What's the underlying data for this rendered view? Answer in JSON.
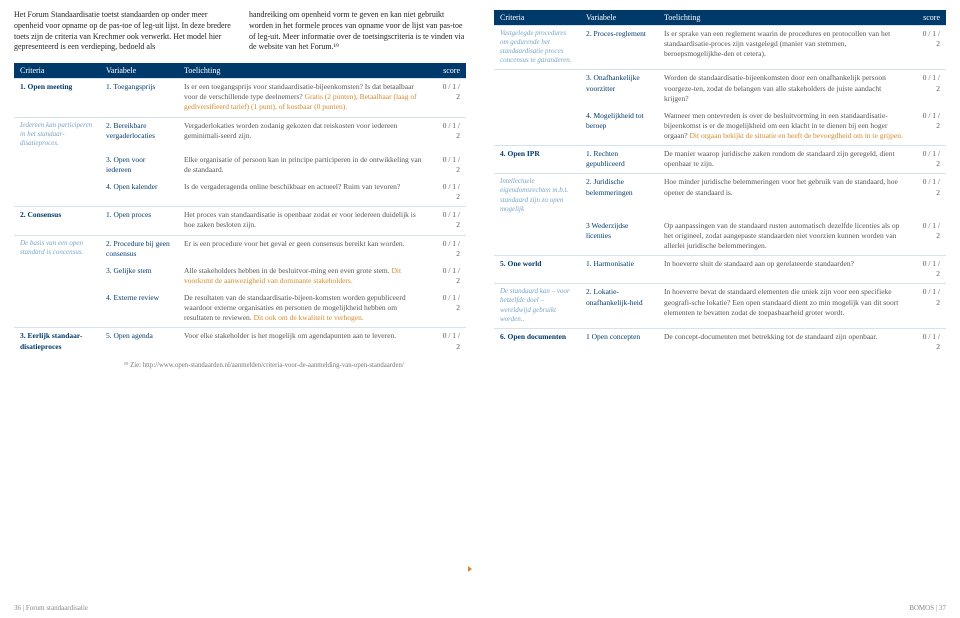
{
  "intro": {
    "p1": "Het Forum Standaardisatie toetst standaarden op onder meer openheid voor opname op de pas-toe of leg-uit lijst. In deze bredere toets zijn de criteria van Krechmer ook verwerkt. Het model hier gepresenteerd is een verdieping, bedoeld als",
    "p2": "handreiking om openheid vorm te geven en kan niet gebruikt worden in het formele proces van opname voor de lijst van pas-toe of leg-uit. Meer informatie over de toetsingscriteria is te vinden via de website van het Forum.¹⁹"
  },
  "headers": {
    "c1": "Criteria",
    "c2": "Variabele",
    "c3": "Toelichting",
    "c4": "score"
  },
  "rowsLeft": [
    {
      "c1b": "1. Open meeting",
      "c1i": "",
      "c2": "1. Toegangsprijs",
      "c3a": "Is er een toegangsprijs voor standaardisatie-bijeenkomsten? Is dat betaalbaar voor de verschillende type deelnemers?",
      "c3h": "Gratis (2 punten), Betaalbaar (laag of gediversifieerd tarief) (1 punt), of kostbaar (0 punten).",
      "c4": "0 / 1 / 2"
    },
    {
      "c1b": "",
      "c1i": "Iedereen kan participeren in het standaar-disatieproces.",
      "c2": "2. Bereikbare vergaderlocaties",
      "c3a": "Vergaderlokaties worden zodanig gekozen dat reiskosten voor iedereen geminimali-seerd zijn.",
      "c3h": "",
      "c4": "0 / 1 / 2"
    },
    {
      "c1b": "",
      "c1i": "",
      "c2": "3. Open voor iedereen",
      "c3a": "Elke organisatie of persoon kan in principe participeren in de ontwikkeling van de standaard.",
      "c3h": "",
      "c4": "0 / 1 / 2"
    },
    {
      "c1b": "",
      "c1i": "",
      "c2": "4. Open kalender",
      "c3a": "Is de vergaderagenda online beschikbaar en actueel? Ruim van tevoren?",
      "c3h": "",
      "c4": "0 / 1 / 2"
    },
    {
      "c1b": "2. Consensus",
      "c1i": "",
      "c2": "1. Open proces",
      "c3a": "Het proces van standaardisatie is openbaar zodat er voor iedereen duidelijk is hoe zaken besloten zijn.",
      "c3h": "",
      "c4": "0 / 1 / 2"
    },
    {
      "c1b": "",
      "c1i": "De basis van een open standard is concensus.",
      "c2": "2. Procedure bij geen consensus",
      "c3a": "Er is een procedure voor het geval er geen consensus bereikt kan worden.",
      "c3h": "",
      "c4": "0 / 1 / 2"
    },
    {
      "c1b": "",
      "c1i": "",
      "c2": "3. Gelijke stem",
      "c3a": "Alle stakeholders hebben in de besluitvor-ming een even grote stem.",
      "c3h": "Dit voorkomt de aanwezigheid van dominante stakeholders.",
      "c4": "0 / 1 / 2"
    },
    {
      "c1b": "",
      "c1i": "",
      "c2": "4. Externe review",
      "c3a": "De resultaten van de standaardisatie-bijeen-komsten worden gepubliceerd waardoor externe organisaties en personen de mogelijkheid hebben om resultaten te reviewen.",
      "c3h": "Dit ook om de kwaliteit te verhogen.",
      "c4": "0 / 1 / 2"
    },
    {
      "c1b": "3. Eerlijk standaar-disatieproces",
      "c1i": "",
      "c2": "5. Open agenda",
      "c3a": "Voor elke stakeholder is het mogelijk om agendapunten aan te leveren.",
      "c3h": "",
      "c4": "0 / 1 / 2"
    }
  ],
  "rowsRight": [
    {
      "c1b": "",
      "c1i": "Vastgelegde procedures om gedurende het standaardisatie proces concensus te garanderen.",
      "c2": "2. Proces-reglement",
      "c3a": "Is er sprake van een reglement waarin de procedures en protocollen van het standaardisatie-proces zijn vastgelegd (manier van stemmen, beroepsmogelijkhe-den et cetera).",
      "c3h": "",
      "c4": "0 / 1 / 2"
    },
    {
      "c1b": "",
      "c1i": "",
      "c2": "3. Onafhankelijke voorzitter",
      "c3a": "Worden de standaardisatie-bijeenkomsten door een onafhankelijk persoon voorgeze-ten, zodat de belangen van alle stakeholders de juiste aandacht krijgen?",
      "c3h": "",
      "c4": "0 / 1 / 2"
    },
    {
      "c1b": "",
      "c1i": "",
      "c2": "4. Mogelijkheid tot beroep",
      "c3a": "Wanneer men ontevreden is over de besluitvorming in een standaardisatie-bijeenkomst is er de mogelijkheid om een klacht in te dienen bij een hoger orgaan?",
      "c3h": "Dit orgaan bekijkt de situatie en heeft de bevoegdheid om in te grijpen.",
      "c4": "0 / 1 / 2"
    },
    {
      "c1b": "4. Open IPR",
      "c1i": "",
      "c2": "1. Rechten gepubliceerd",
      "c3a": "De manier waarop juridische zaken rondom de standaard zijn geregeld, dient openbaar te zijn.",
      "c3h": "",
      "c4": "0 / 1 / 2"
    },
    {
      "c1b": "",
      "c1i": "Intellectuele eigendomsrechten m.b.t. standaard zijn zo open mogelijk",
      "c2": "2. Juridische belemmeringen",
      "c3a": "Hoe minder juridische belemmeringen voor het gebruik van de standaard, hoe opener de standaard is.",
      "c3h": "",
      "c4": "0 / 1 / 2"
    },
    {
      "c1b": "",
      "c1i": "",
      "c2": "3 Wederzijdse licenties",
      "c3a": "Op aanpassingen van de standaard rusten automatisch dezelfde licenties als op het origineel, zodat aangepaste standaarden niet voorzien kunnen worden van allerlei juridische belemmeringen.",
      "c3h": "",
      "c4": "0 / 1 / 2"
    },
    {
      "c1b": "5. One world",
      "c1i": "",
      "c2": "1. Harmonisatie",
      "c3a": "In hoeverre sluit de standaard aan op gerelateerde standaarden?",
      "c3h": "",
      "c4": "0 / 1 / 2"
    },
    {
      "c1b": "",
      "c1i": "De standaard kan – voor hetzelfde doel – wereldwijd gebruikt worden..",
      "c2": "2. Lokatie-onafhankelijk-heid",
      "c3a": "In hoeverre bevat de standaard elementen die uniek zijn voor een specifieke geografi-sche lokatie? Een open standaard dient zo min mogelijk van dit soort elementen te bevatten zodat de toepasbaarheid groter wordt.",
      "c3h": "",
      "c4": "0 / 1 / 2"
    },
    {
      "c1b": "6. Open documenten",
      "c1i": "",
      "c2": "1 Open concepten",
      "c3a": "De concept-documenten met betrekking tot de standaard zijn openbaar.",
      "c3h": "",
      "c4": "0 / 1 / 2"
    }
  ],
  "footnote": "¹⁹ Zie: http://www.open-standaarden.nl/aanmelden/criteria-voor-de-aanmelding-van-open-standaarden/",
  "footer": {
    "left": "36 | Forum standaardisatie",
    "right": "BOMOS | 37"
  }
}
